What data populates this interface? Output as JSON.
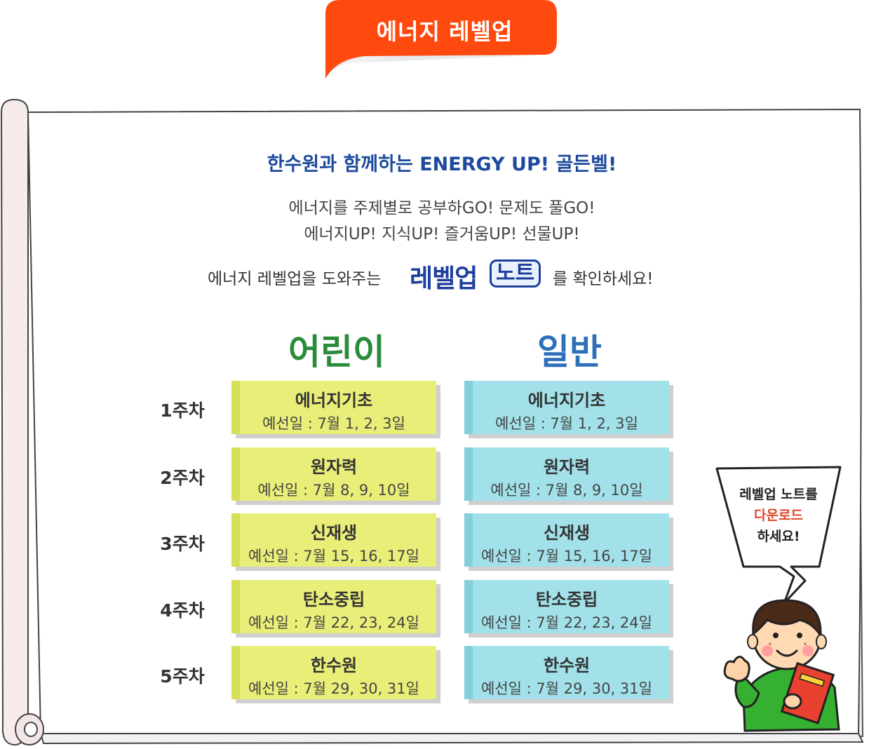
{
  "header": {
    "label": "에너지 레벨업"
  },
  "intro": {
    "headline": "한수원과 함께하는 ENERGY UP! 골든벨!",
    "line1": "에너지를 주제별로 공부하GO! 문제도 풀GO!",
    "line2": "에너지UP! 지식UP! 즐거움UP! 선물UP!",
    "note_prefix": "에너지 레벨업을 도와주는",
    "note_logo_levelup": "레벨업",
    "note_logo_note": "노트",
    "note_suffix": "를 확인하세요!"
  },
  "columns": {
    "kids": "어린이",
    "general": "일반"
  },
  "weeks": [
    {
      "label": "1주차",
      "subject": "에너지기초",
      "dates": "예선일 : 7월 1, 2, 3일"
    },
    {
      "label": "2주차",
      "subject": "원자력",
      "dates": "예선일 : 7월 8, 9, 10일"
    },
    {
      "label": "3주차",
      "subject": "신재생",
      "dates": "예선일 : 7월 15, 16, 17일"
    },
    {
      "label": "4주차",
      "subject": "탄소중립",
      "dates": "예선일 : 7월 22, 23, 24일"
    },
    {
      "label": "5주차",
      "subject": "한수원",
      "dates": "예선일 : 7월 29, 30, 31일"
    }
  ],
  "speech_bubble": {
    "line1": "레벨업 노트를",
    "line2": "다운로드",
    "line3": "하세요!"
  },
  "colors": {
    "header_orange": "#ff4a0f",
    "headline_blue": "#1d4a9c",
    "kids_green": "#2a8c3a",
    "general_blue": "#2d6fb8",
    "kids_card": "#e9ee78",
    "general_card": "#a2e1e9",
    "bubble_highlight": "#e0452a"
  },
  "icons": {
    "boy_character": "boy-holding-book-icon",
    "speech_bubble": "speech-bubble-icon",
    "scroll": "paper-scroll-icon"
  }
}
